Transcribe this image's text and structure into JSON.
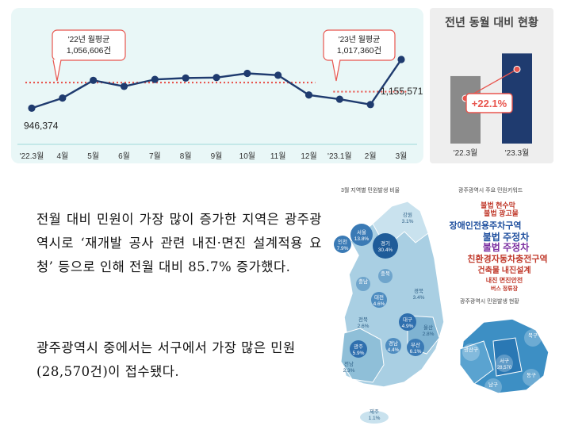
{
  "line_chart": {
    "chart_data": {
      "type": "line",
      "categories": [
        "'22.3월",
        "4월",
        "5월",
        "6월",
        "7월",
        "8월",
        "9월",
        "10월",
        "11월",
        "12월",
        "'23.1월",
        "2월",
        "3월"
      ],
      "series": [
        {
          "values": [
            946374,
            990000,
            1066000,
            1040000,
            1070000,
            1076000,
            1078000,
            1096000,
            1088000,
            1003000,
            985000,
            962000,
            1155571
          ]
        }
      ],
      "reference_lines": [
        {
          "label": "'22년 월평균",
          "value": 1056606,
          "value_text": "1,056,606건",
          "color": "#e8554e",
          "span": "'22.3월-12월"
        },
        {
          "label": "'23년 월평균",
          "value": 1017360,
          "value_text": "1,017,360건",
          "color": "#e8554e",
          "span": "'23.1월-3월"
        }
      ],
      "data_labels": {
        "first": "946,374",
        "last": "1,155,571"
      },
      "line_color": "#1f3b6f"
    }
  },
  "bar_chart": {
    "title": "전년 동월 대비 현황",
    "change_label": "+22.1%",
    "chart_data": {
      "type": "bar",
      "categories": [
        "'22.3월",
        "'23.3월"
      ],
      "values": [
        946374,
        1155571
      ],
      "colors": [
        "#8a8a8a",
        "#1f3b6f"
      ]
    }
  },
  "paragraph1": "전월 대비 민원이 가장 많이 증가한 지역은 광주광역시로 ‘재개발 공사 관련 내진·면진 설계적용 요청’ 등으로 인해 전월 대비 85.7% 증가했다.",
  "paragraph2": "광주광역시 중에서는 서구에서 가장 많은 민원(28,570건)이 접수됐다.",
  "map": {
    "title_left": "3월 지역별 민원발생 비율",
    "title_keywords": "광주광역시 주요 민원키워드",
    "title_district": "광주광역시 민원발생 현황",
    "regions": [
      {
        "name": "서울",
        "value": "13.8%"
      },
      {
        "name": "경기",
        "value": "30.4%"
      },
      {
        "name": "인천",
        "value": "7.9%"
      },
      {
        "name": "강원",
        "value": "3.1%"
      },
      {
        "name": "충북",
        "value": ""
      },
      {
        "name": "충남",
        "value": ""
      },
      {
        "name": "대전",
        "value": "4.6%"
      },
      {
        "name": "경북",
        "value": "3.4%"
      },
      {
        "name": "대구",
        "value": "4.9%"
      },
      {
        "name": "전북",
        "value": "2.6%"
      },
      {
        "name": "경남",
        "value": "4.4%"
      },
      {
        "name": "광주",
        "value": "5.9%"
      },
      {
        "name": "부산",
        "value": "6.1%"
      },
      {
        "name": "울산",
        "value": "2.8%"
      },
      {
        "name": "전남",
        "value": "2.3%"
      },
      {
        "name": "제주",
        "value": "1.1%"
      }
    ],
    "keywords": [
      "불법 주정차",
      "장애인전용주차구역",
      "불법 광고물",
      "불법 현수막",
      "친환경자동차충전구역",
      "건축물 내진설계",
      "내진 면진안전",
      "버스 정류장"
    ],
    "districts": [
      {
        "name": "북구",
        "value": ""
      },
      {
        "name": "광산구",
        "value": ""
      },
      {
        "name": "서구",
        "value": "28,570"
      },
      {
        "name": "남구",
        "value": ""
      },
      {
        "name": "동구",
        "value": ""
      }
    ]
  }
}
